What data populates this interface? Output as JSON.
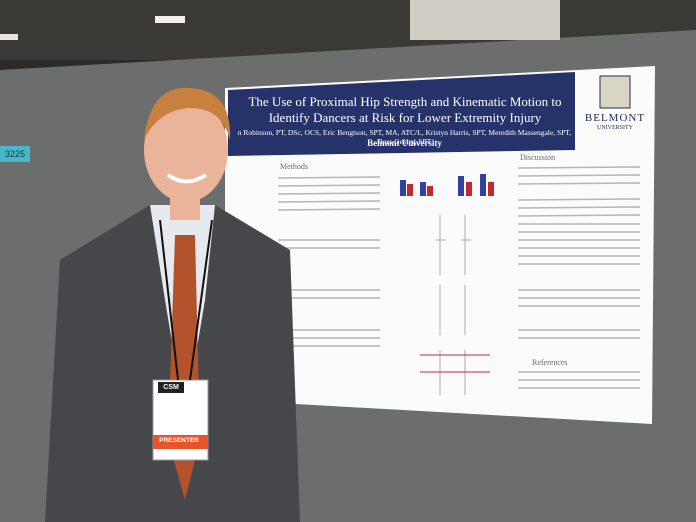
{
  "booth_number": "3225",
  "poster": {
    "title": "The Use of Proximal Hip Strength and Kinematic Motion to Identify Dancers at Risk for Lower Extremity Injury",
    "authors": "n Robinson, PT, DSc, OCS, Eric Bengtson, SPT, MA, ATC/L, Kristyn Harris, SPT, Meredith Massengale, SPT, Ross Gentry, SPT",
    "institution": "Belmont University",
    "logo_text": "BELMONT",
    "logo_subtext": "UNIVERSITY",
    "sections": [
      "Methods",
      "Discussion",
      "References"
    ]
  },
  "badge": {
    "conference": "CSM",
    "role": "PRESENTER"
  }
}
